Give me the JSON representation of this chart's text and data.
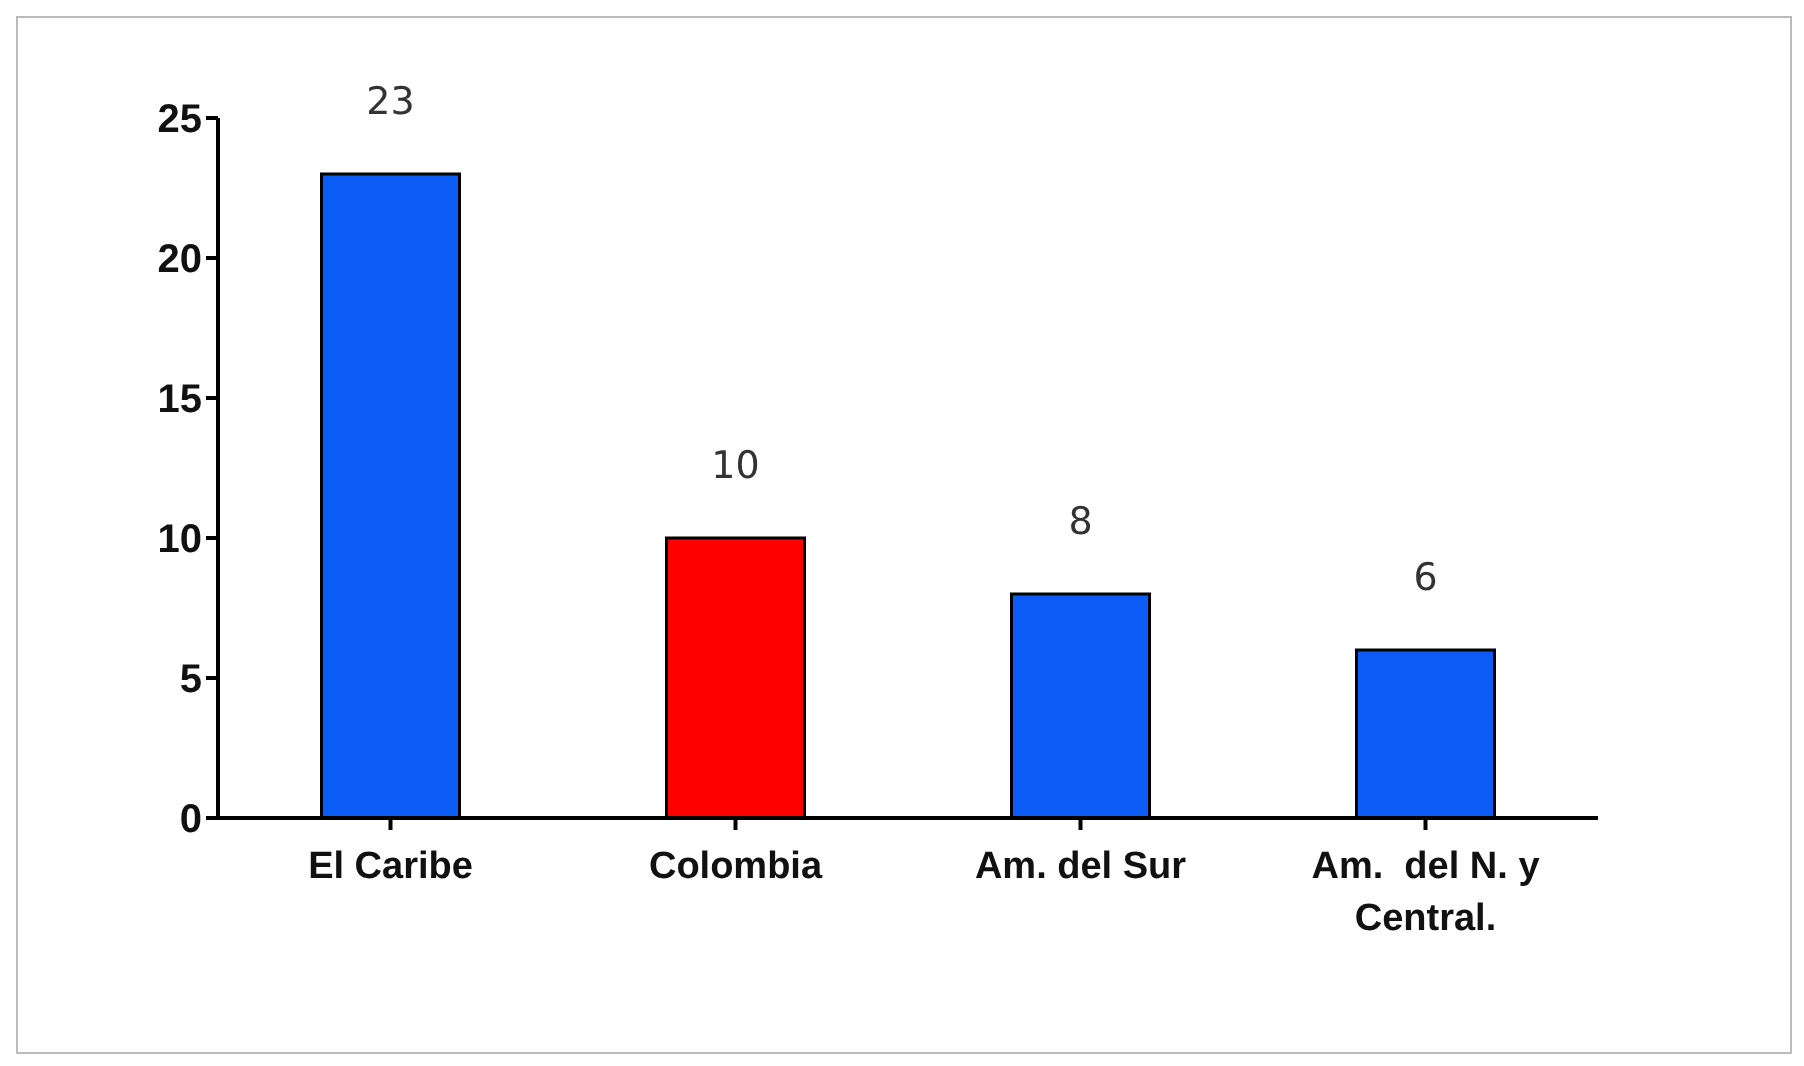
{
  "chart_data": {
    "type": "bar",
    "categories": [
      "El Caribe",
      "Colombia",
      "Am. del Sur",
      "Am.  del N. y Central."
    ],
    "values": [
      23,
      10,
      8,
      6
    ],
    "colors": [
      "#0a5cf5",
      "#ff0000",
      "#0a5cf5",
      "#0a5cf5"
    ],
    "ylim": [
      0,
      25
    ],
    "yticks": [
      0,
      5,
      10,
      15,
      20,
      25
    ],
    "data_labels": true
  }
}
